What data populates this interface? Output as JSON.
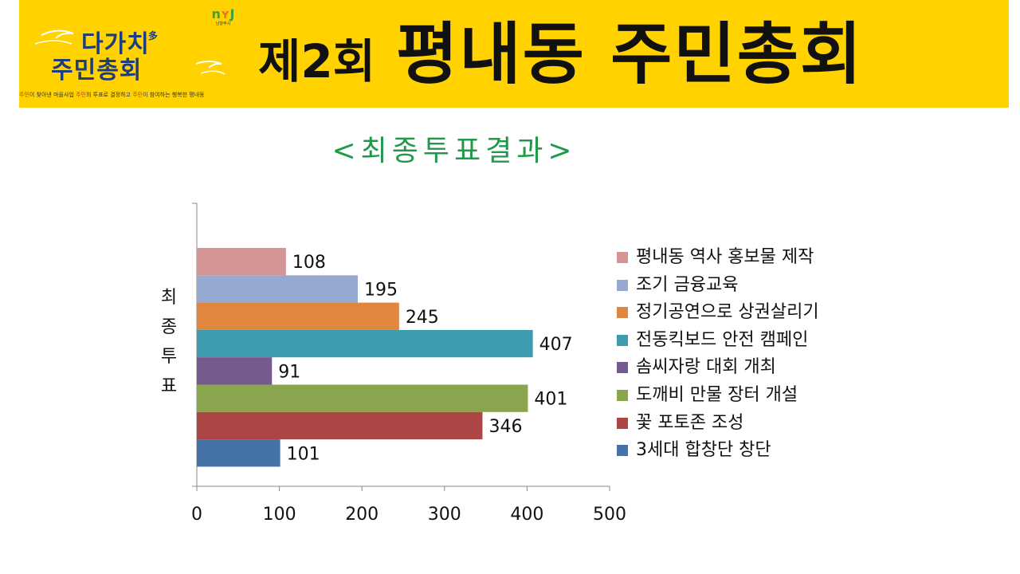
{
  "banner": {
    "logo_line1": "다가치",
    "logo_mark": "多",
    "logo_line2": "주민총회",
    "tagline_parts": [
      {
        "text": "주민",
        "color": "#c0392b"
      },
      {
        "text": "이 찾아낸 마을사업  ",
        "color": "#333333"
      },
      {
        "text": "주민",
        "color": "#c0392b"
      },
      {
        "text": "의 투표로 결정하고  ",
        "color": "#333333"
      },
      {
        "text": "주민",
        "color": "#c0392b"
      },
      {
        "text": "이 참여하는 행복한 평내동",
        "color": "#333333"
      }
    ],
    "city_logo_text": "남양주시",
    "title_prefix": "제2회",
    "title_main": "평내동 주민총회",
    "bg_color": "#FFD200"
  },
  "subtitle": "<최종투표결과>",
  "chart_data": {
    "type": "bar",
    "orientation": "horizontal",
    "title": "",
    "ylabel": "최종투표",
    "xlabel": "",
    "xlim": [
      0,
      500
    ],
    "xticks": [
      0,
      100,
      200,
      300,
      400,
      500
    ],
    "grid": false,
    "legend_position": "right",
    "series": [
      {
        "name": "평내동 역사 홍보물 제작",
        "value": 108,
        "color": "#D49494"
      },
      {
        "name": "조기 금융교육",
        "value": 195,
        "color": "#96A9D1"
      },
      {
        "name": "정기공연으로 상권살리기",
        "value": 245,
        "color": "#E0863F"
      },
      {
        "name": "전동킥보드 안전 캠페인",
        "value": 407,
        "color": "#3E9BAE"
      },
      {
        "name": "솜씨자랑 대회 개최",
        "value": 91,
        "color": "#745A8E"
      },
      {
        "name": "도깨비 만물 장터 개설",
        "value": 401,
        "color": "#89A54E"
      },
      {
        "name": "꽃 포토존 조성",
        "value": 346,
        "color": "#AB4644"
      },
      {
        "name": "3세대 합창단 창단",
        "value": 101,
        "color": "#4572A7"
      }
    ]
  }
}
